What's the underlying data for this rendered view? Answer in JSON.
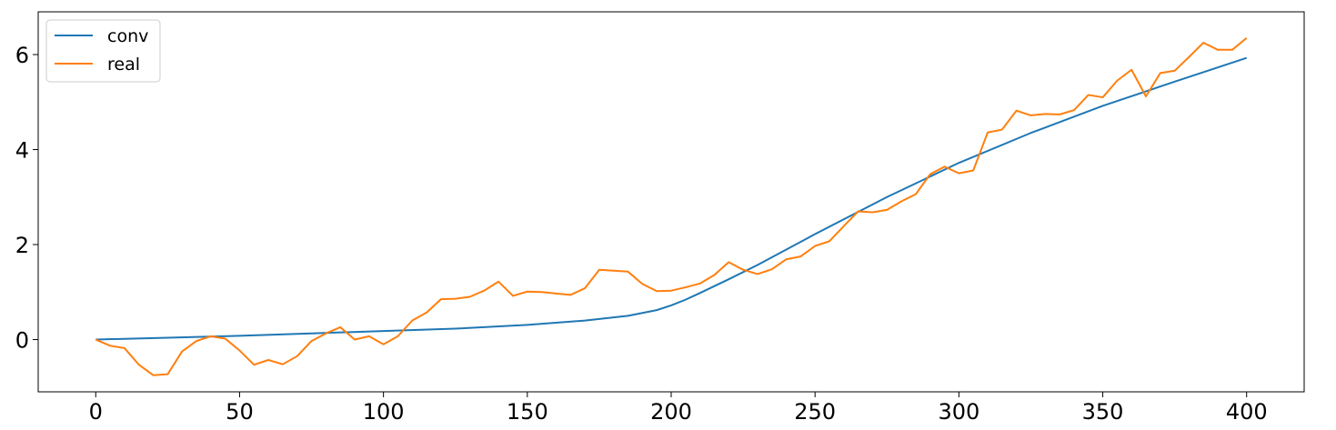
{
  "chart_data": {
    "type": "line",
    "title": "",
    "xlabel": "",
    "ylabel": "",
    "xlim": [
      -20,
      420
    ],
    "ylim": [
      -1.1,
      6.9
    ],
    "xticks": [
      0,
      50,
      100,
      150,
      200,
      250,
      300,
      350,
      400
    ],
    "yticks": [
      0,
      2,
      4,
      6
    ],
    "grid": false,
    "legend_position": "top-left",
    "series": [
      {
        "name": "conv",
        "color": "#1f77b4",
        "x": [
          0,
          25,
          50,
          75,
          100,
          125,
          150,
          170,
          185,
          195,
          200,
          205,
          210,
          220,
          230,
          250,
          275,
          300,
          325,
          350,
          375,
          400
        ],
        "y": [
          0.0,
          0.04,
          0.08,
          0.13,
          0.18,
          0.23,
          0.31,
          0.4,
          0.5,
          0.62,
          0.72,
          0.84,
          0.98,
          1.27,
          1.57,
          2.22,
          3.0,
          3.72,
          4.35,
          4.92,
          5.43,
          5.93
        ]
      },
      {
        "name": "real",
        "color": "#ff7f0e",
        "x": [
          0,
          5,
          10,
          15,
          20,
          25,
          30,
          35,
          40,
          45,
          50,
          55,
          60,
          65,
          70,
          75,
          80,
          85,
          90,
          95,
          100,
          105,
          110,
          115,
          120,
          125,
          130,
          135,
          140,
          145,
          150,
          155,
          160,
          165,
          170,
          175,
          180,
          185,
          190,
          195,
          200,
          205,
          210,
          215,
          220,
          225,
          230,
          235,
          240,
          245,
          250,
          255,
          260,
          265,
          270,
          275,
          280,
          285,
          290,
          295,
          300,
          305,
          310,
          315,
          320,
          325,
          330,
          335,
          340,
          345,
          350,
          355,
          360,
          365,
          370,
          375,
          380,
          385,
          390,
          395,
          400
        ],
        "y": [
          0.0,
          -0.13,
          -0.18,
          -0.53,
          -0.75,
          -0.73,
          -0.25,
          -0.03,
          0.07,
          0.02,
          -0.23,
          -0.53,
          -0.43,
          -0.52,
          -0.35,
          -0.03,
          0.13,
          0.26,
          0.0,
          0.07,
          -0.1,
          0.07,
          0.4,
          0.57,
          0.85,
          0.86,
          0.9,
          1.03,
          1.22,
          0.92,
          1.01,
          1.0,
          0.97,
          0.94,
          1.08,
          1.47,
          1.45,
          1.43,
          1.17,
          1.02,
          1.03,
          1.1,
          1.18,
          1.36,
          1.63,
          1.47,
          1.38,
          1.48,
          1.69,
          1.75,
          1.97,
          2.07,
          2.39,
          2.7,
          2.68,
          2.73,
          2.91,
          3.06,
          3.48,
          3.64,
          3.5,
          3.56,
          4.36,
          4.42,
          4.82,
          4.72,
          4.75,
          4.74,
          4.83,
          5.15,
          5.1,
          5.45,
          5.68,
          5.12,
          5.61,
          5.66,
          5.95,
          6.25,
          6.1,
          6.1,
          6.35
        ]
      }
    ]
  }
}
